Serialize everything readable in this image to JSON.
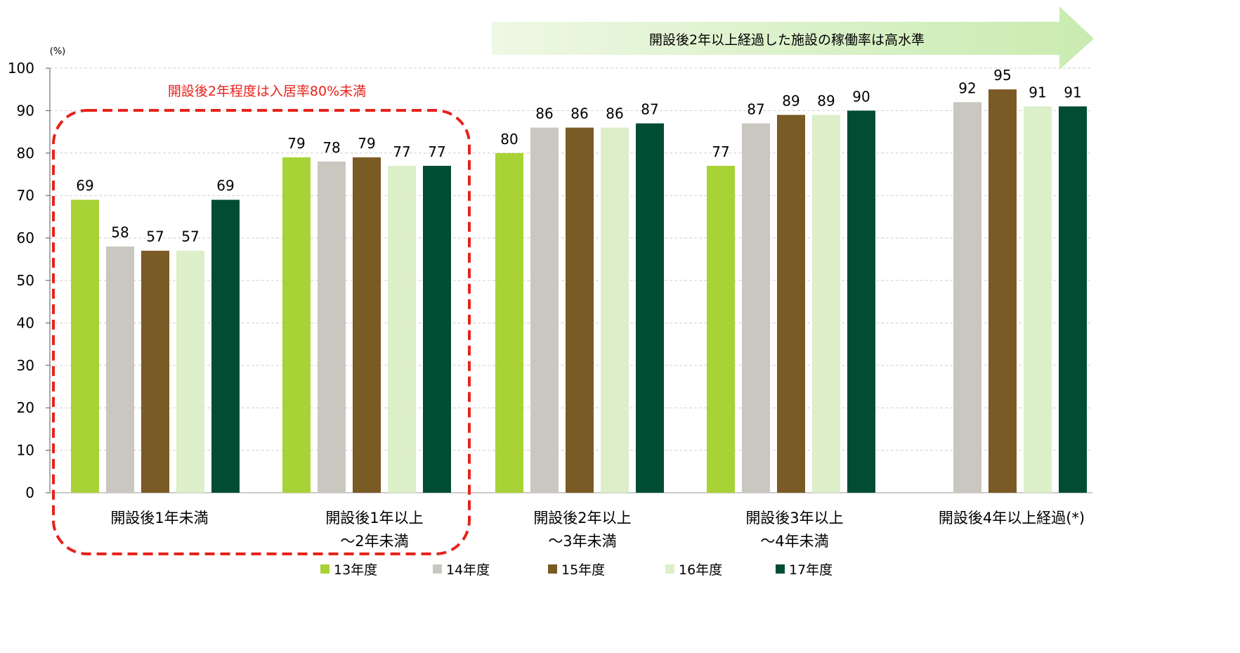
{
  "chart_data": {
    "type": "bar",
    "y_unit": "(%)",
    "ylim": [
      0,
      100
    ],
    "y_ticks": [
      0,
      10,
      20,
      30,
      40,
      50,
      60,
      70,
      80,
      90,
      100
    ],
    "grid": true,
    "legend_position": "bottom",
    "categories": [
      [
        "開設後1年未満"
      ],
      [
        "開設後1年以上",
        "～2年未満"
      ],
      [
        "開設後2年以上",
        "～3年未満"
      ],
      [
        "開設後3年以上",
        "～4年未満"
      ],
      [
        "開設後4年以上経過(*)"
      ]
    ],
    "series": [
      {
        "name": "13年度",
        "color": "#a8d236",
        "values": [
          69,
          79,
          80,
          77,
          null
        ]
      },
      {
        "name": "14年度",
        "color": "#c9c7bf",
        "values": [
          58,
          78,
          86,
          87,
          92
        ]
      },
      {
        "name": "15年度",
        "color": "#7a5a25",
        "values": [
          57,
          79,
          86,
          89,
          95
        ]
      },
      {
        "name": "16年度",
        "color": "#dcefc8",
        "values": [
          57,
          77,
          86,
          89,
          91
        ]
      },
      {
        "name": "17年度",
        "color": "#004d33",
        "values": [
          69,
          77,
          87,
          90,
          91
        ]
      }
    ],
    "annotations": {
      "red_box_note": "開設後2年程度は入居率80%未満",
      "red_box_color": "#e8221c",
      "arrow_note": "開設後2年以上経過した施設の稼働率は高水準",
      "arrow_color": "#d9f2c2"
    }
  }
}
